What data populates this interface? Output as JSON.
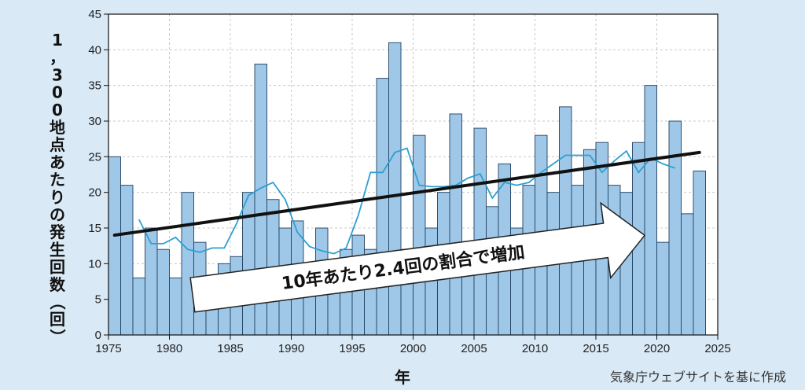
{
  "chart_data": {
    "type": "bar",
    "ylabel": "1，300地点あたりの発生回数（回）",
    "xlabel": "年",
    "source": "気象庁ウェブサイトを基に作成",
    "annotation": "10年あたり2.4回の割合で増加",
    "xlim": [
      1975,
      2025
    ],
    "ylim": [
      0,
      45
    ],
    "x_ticks": [
      "1975",
      "1980",
      "1985",
      "1990",
      "1995",
      "2000",
      "2005",
      "2010",
      "2015",
      "2020",
      "2025"
    ],
    "y_ticks": [
      "0",
      "5",
      "10",
      "15",
      "20",
      "25",
      "30",
      "35",
      "40",
      "45"
    ],
    "grid": true,
    "series": [
      {
        "type": "bar",
        "color": "#9fc8e8",
        "x": [
          1976,
          1977,
          1978,
          1979,
          1980,
          1981,
          1982,
          1983,
          1984,
          1985,
          1986,
          1987,
          1988,
          1989,
          1990,
          1991,
          1992,
          1993,
          1994,
          1995,
          1996,
          1997,
          1998,
          1999,
          2000,
          2001,
          2002,
          2003,
          2004,
          2005,
          2006,
          2007,
          2008,
          2009,
          2010,
          2011,
          2012,
          2013,
          2014,
          2015,
          2016,
          2017,
          2018,
          2019,
          2020,
          2021,
          2022,
          2023,
          2024
        ],
        "values": [
          25,
          21,
          8,
          15,
          12,
          8,
          20,
          13,
          6,
          10,
          11,
          20,
          38,
          19,
          15,
          16,
          7,
          15,
          7,
          12,
          14,
          12,
          36,
          41,
          12,
          28,
          15,
          20,
          31,
          11,
          29,
          18,
          24,
          15,
          21,
          28,
          20,
          32,
          21,
          26,
          27,
          21,
          20,
          27,
          35,
          13,
          30,
          17,
          23
        ]
      },
      {
        "type": "line",
        "color": "#2c9fd1",
        "x": [
          1978,
          1979,
          1980,
          1981,
          1982,
          1983,
          1984,
          1985,
          1986,
          1987,
          1988,
          1989,
          1990,
          1991,
          1992,
          1993,
          1994,
          1995,
          1996,
          1997,
          1998,
          1999,
          2000,
          2001,
          2002,
          2003,
          2004,
          2005,
          2006,
          2007,
          2008,
          2009,
          2010,
          2011,
          2012,
          2013,
          2014,
          2015,
          2016,
          2017,
          2018,
          2019,
          2020,
          2021,
          2022
        ],
        "values": [
          16.2,
          12.8,
          12.8,
          13.7,
          12.0,
          11.6,
          12.2,
          12.2,
          15.6,
          19.6,
          20.6,
          21.4,
          19.0,
          14.4,
          12.4,
          11.8,
          11.4,
          12.2,
          16.8,
          22.8,
          22.8,
          25.6,
          26.2,
          21.0,
          20.8,
          20.8,
          21.0,
          22.0,
          22.6,
          19.2,
          21.4,
          21.0,
          21.4,
          22.8,
          24.0,
          25.2,
          25.2,
          25.2,
          22.8,
          24.4,
          25.8,
          22.8,
          24.8,
          24.0,
          23.4
        ]
      },
      {
        "type": "trend",
        "color": "#111111",
        "x": [
          1975.5,
          2023.5
        ],
        "values": [
          14.0,
          25.6
        ]
      }
    ]
  }
}
